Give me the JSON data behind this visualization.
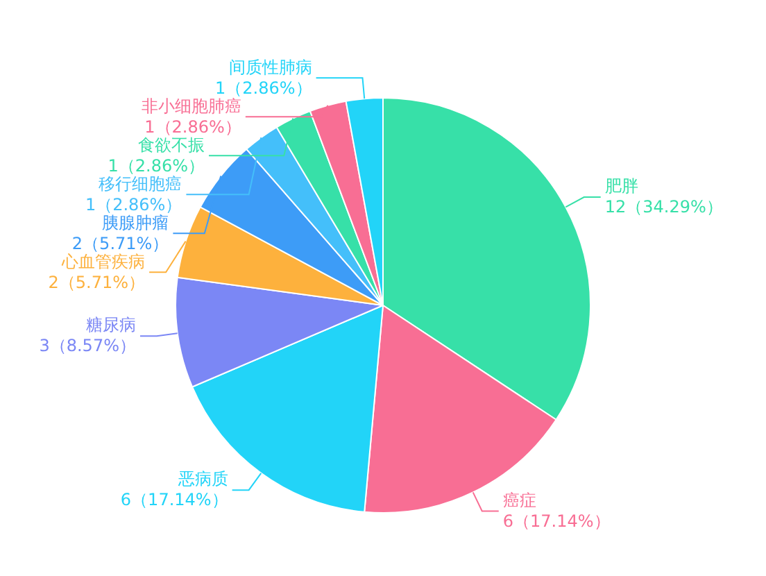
{
  "chart_data": {
    "type": "pie",
    "categories": [
      "肥胖",
      "癌症",
      "恶病质",
      "糖尿病",
      "心血管疾病",
      "胰腺肿瘤",
      "移行细胞癌",
      "食欲不振",
      "非小细胞肺癌",
      "间质性肺病"
    ],
    "values": [
      12,
      6,
      6,
      3,
      2,
      2,
      1,
      1,
      1,
      1
    ],
    "colors": [
      "#37e0a8",
      "#f86e94",
      "#22d4f8",
      "#7b87f5",
      "#fdb13d",
      "#3d9cf7",
      "#44bffa",
      "#37e0a8",
      "#f86e94",
      "#22d4f8"
    ],
    "value_labels": [
      "12（34.29%）",
      "6（17.14%）",
      "6（17.14%）",
      "3（8.57%）",
      "2（5.71%）",
      "2（5.71%）",
      "1（2.86%）",
      "1（2.86%）",
      "1（2.86%）",
      "1（2.86%）"
    ]
  }
}
